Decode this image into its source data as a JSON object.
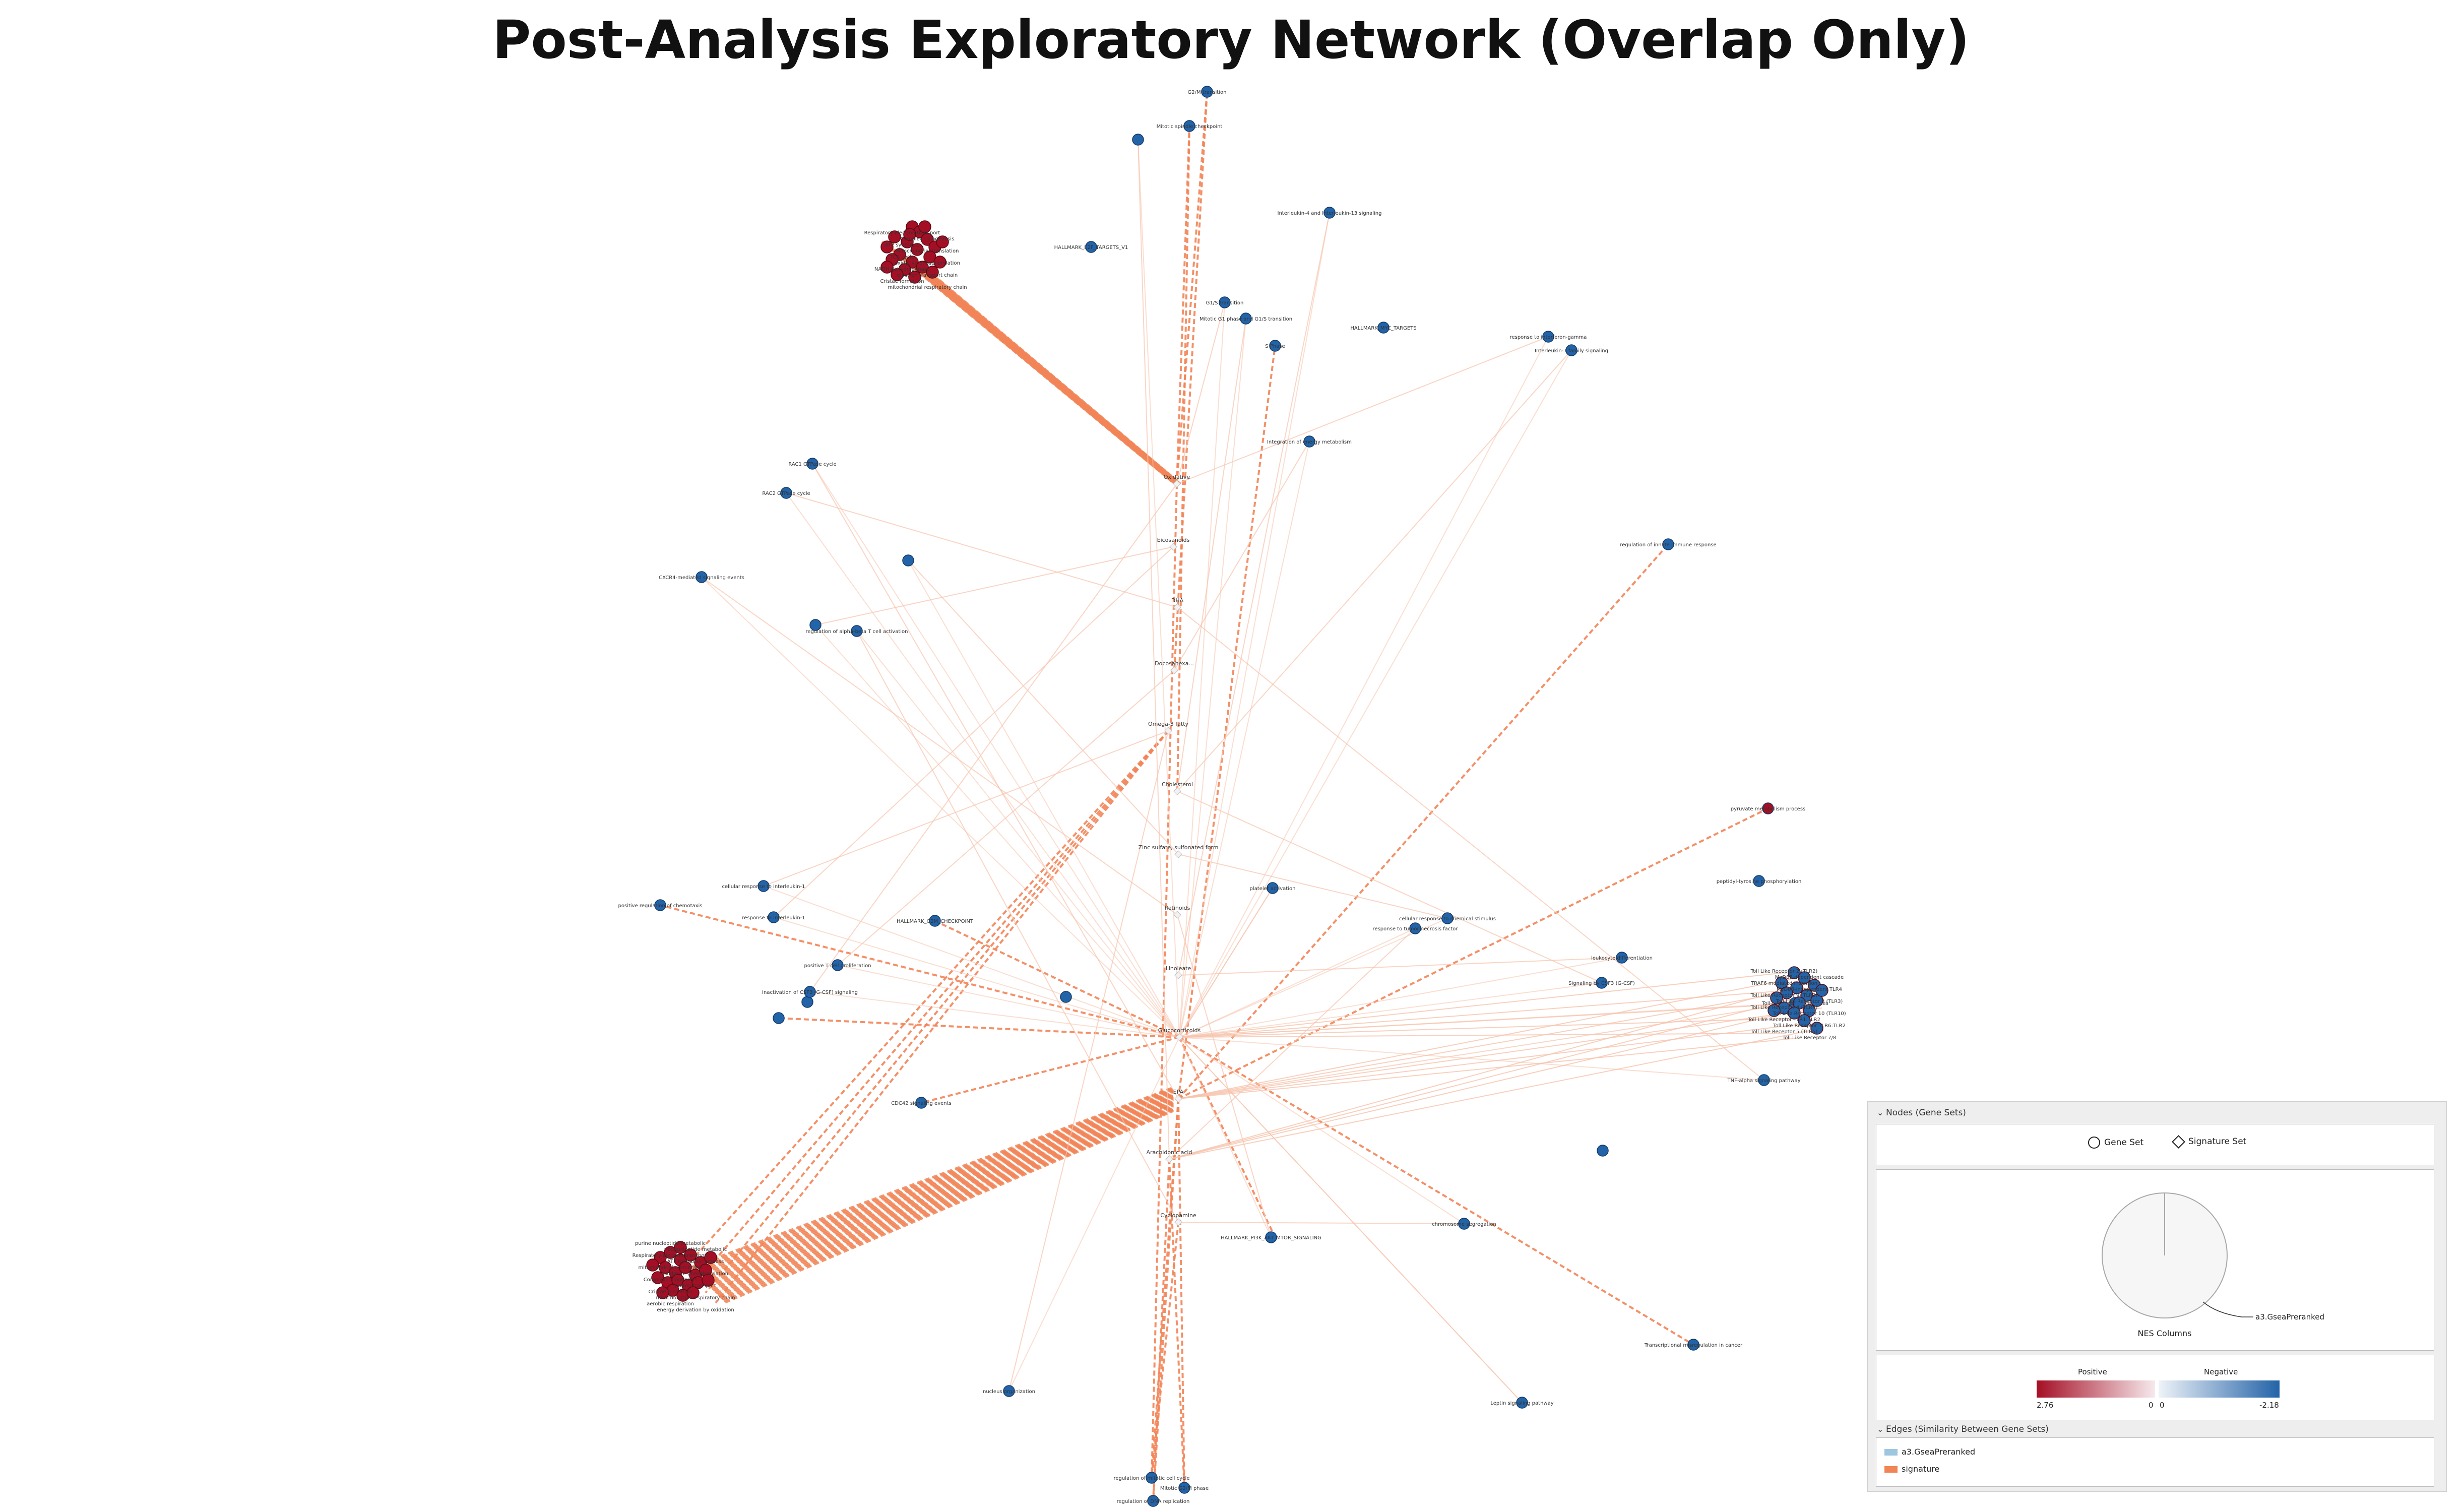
{
  "title": "Post-Analysis Exploratory Network (Overlap Only)",
  "colors": {
    "positive_node": "#a50f25",
    "negative_node": "#2363a8",
    "signature_edge": "#f28558",
    "signature_edge_light": "#f7c4ad",
    "geneset_edge": "#9ec7df"
  },
  "signature_nodes": [
    {
      "id": "S1",
      "label": "Oxidative"
    },
    {
      "id": "S2",
      "label": "Eicosanoids"
    },
    {
      "id": "S3",
      "label": "DHA"
    },
    {
      "id": "S4",
      "label": "Docosahexa..."
    },
    {
      "id": "S5",
      "label": "Omega-3 fatty"
    },
    {
      "id": "S6",
      "label": "Cholesterol"
    },
    {
      "id": "S7",
      "label": "Zinc sulfate, sulfonated form"
    },
    {
      "id": "S8",
      "label": "Retinoids"
    },
    {
      "id": "S9",
      "label": "Linoleate"
    },
    {
      "id": "S10",
      "label": "Glucocorticoids"
    },
    {
      "id": "S11",
      "label": "EPA"
    },
    {
      "id": "S12",
      "label": "Arachidonic acid"
    },
    {
      "id": "S13",
      "label": "Cyclopamine"
    }
  ],
  "gene_sets": [
    {
      "id": "G1",
      "label": "G2/M transition",
      "nes": -1
    },
    {
      "id": "G2",
      "label": "Mitotic spindle checkpoint",
      "nes": -1
    },
    {
      "id": "G3",
      "label": "",
      "nes": -1
    },
    {
      "id": "G4",
      "label": "Interleukin-4 and Interleukin-13 signaling",
      "nes": -1
    },
    {
      "id": "G5",
      "label": "HALLMARK_E2F_TARGETS_V1",
      "nes": -1
    },
    {
      "id": "G6",
      "label": "G1/S transition",
      "nes": -1
    },
    {
      "id": "G7",
      "label": "Mitotic G1 phase and G1/S transition",
      "nes": -1
    },
    {
      "id": "G8",
      "label": "S Phase",
      "nes": -1
    },
    {
      "id": "G9",
      "label": "HALLMARK_MYC_TARGETS",
      "nes": -1
    },
    {
      "id": "G10",
      "label": "Integration of energy metabolism",
      "nes": -1
    },
    {
      "id": "G11",
      "label": "response to interferon-gamma",
      "nes": -1
    },
    {
      "id": "G12",
      "label": "Interleukin-1 family signaling",
      "nes": -1
    },
    {
      "id": "G13",
      "label": "RAC1 GTPase cycle",
      "nes": -1
    },
    {
      "id": "G14",
      "label": "RAC2 GTPase cycle",
      "nes": -1
    },
    {
      "id": "G15",
      "label": "regulation of innate immune response",
      "nes": -1
    },
    {
      "id": "G16",
      "label": "",
      "nes": -1
    },
    {
      "id": "G17",
      "label": "CXCR4-mediated signaling events",
      "nes": -1
    },
    {
      "id": "G18",
      "label": "",
      "nes": -1
    },
    {
      "id": "G19",
      "label": "regulation of alpha-beta T cell activation",
      "nes": -1
    },
    {
      "id": "G20",
      "label": "pyruvate metabolism process",
      "nes": 1
    },
    {
      "id": "G21",
      "label": "peptidyl-tyrosine phosphorylation",
      "nes": -1
    },
    {
      "id": "G22",
      "label": "cellular response to interleukin-1",
      "nes": -1
    },
    {
      "id": "G23",
      "label": "platelet activation",
      "nes": -1
    },
    {
      "id": "G24",
      "label": "positive regulation of chemotaxis",
      "nes": -1
    },
    {
      "id": "G25",
      "label": "HALLMARK_G2M_CHECKPOINT",
      "nes": -1
    },
    {
      "id": "G26",
      "label": "response to interleukin-1",
      "nes": -1
    },
    {
      "id": "G27",
      "label": "cellular response to chemical stimulus",
      "nes": -1
    },
    {
      "id": "G28",
      "label": "response to tumor necrosis factor",
      "nes": -1
    },
    {
      "id": "G29",
      "label": "positive T cell proliferation",
      "nes": -1
    },
    {
      "id": "G30",
      "label": "leukocyte differentiation",
      "nes": -1
    },
    {
      "id": "G31",
      "label": "",
      "nes": -1
    },
    {
      "id": "G32",
      "label": "Inactivation of CSF3 (G-CSF) signaling",
      "nes": -1
    },
    {
      "id": "G33",
      "label": "Signaling by CSF3 (G-CSF)",
      "nes": -1
    },
    {
      "id": "G34",
      "label": "Toll-like receptor cascades",
      "nes": -1
    },
    {
      "id": "G35",
      "label": "",
      "nes": -1
    },
    {
      "id": "G36",
      "label": "",
      "nes": -1
    },
    {
      "id": "G37",
      "label": "TNF-alpha signaling pathway",
      "nes": -1
    },
    {
      "id": "G38",
      "label": "CDC42 signaling events",
      "nes": -1
    },
    {
      "id": "G39",
      "label": "",
      "nes": -1
    },
    {
      "id": "G40",
      "label": "HALLMARK_PI3K_AKT_MTOR_SIGNALING",
      "nes": -1
    },
    {
      "id": "G41",
      "label": "",
      "nes": -1
    },
    {
      "id": "G42",
      "label": "chromosome segregation",
      "nes": -1
    },
    {
      "id": "G43",
      "label": "Transcriptional misregulation in cancer",
      "nes": -1
    },
    {
      "id": "G44",
      "label": "nucleus organization",
      "nes": -1
    },
    {
      "id": "G45",
      "label": "Leptin signaling pathway",
      "nes": -1
    },
    {
      "id": "G46",
      "label": "regulation of mitotic cell cycle",
      "nes": -1
    },
    {
      "id": "G47",
      "label": "Mitotic G2/M phase",
      "nes": -1
    },
    {
      "id": "G48",
      "label": "regulation of DNA replication",
      "nes": -1
    }
  ],
  "top_cluster_labels": [
    "Respiratory electron transport",
    "Complex I biogenesis",
    "ATP synthesis",
    "Mitochondrial translation",
    "TCA cycle",
    "oxidative phosphorylation",
    "NADH dehydrogenase",
    "electron transport chain",
    "Cristae formation",
    "mitochondrial respiratory chain"
  ],
  "bottom_cluster_labels": [
    "purine nucleotide metabolic",
    "ribonucleotide metabolic",
    "Respiratory electron transport",
    "ATP metabolic process",
    "mitochondrial membrane",
    "oxidative phosphorylation",
    "Complex I biogenesis",
    "proton transport",
    "Cristae formation",
    "mitochondrial respiratory chain",
    "aerobic respiration",
    "energy derivation by oxidation"
  ],
  "right_cluster_labels": [
    "Toll Like Receptor 2 (TLR2)",
    "MyD88 dependent cascade",
    "TRAF6 mediated induction",
    "MyD88-independent TLR4",
    "Toll Like Receptor 9 (TLR9)",
    "Toll Like Receptor 3 (TLR3)",
    "Toll Like Receptor 4 (TLR4)",
    "Toll Like Receptor 10 (TLR10)",
    "Toll Like Receptor TLR1:TLR2",
    "Toll Like Receptor TLR6:TLR2",
    "Toll Like Receptor 5 (TLR5)",
    "Toll Like Receptor 7/8"
  ],
  "legend": {
    "nodes_header": "Nodes (Gene Sets)",
    "gene_set_label": "Gene Set",
    "signature_set_label": "Signature Set",
    "pie_label": "a3.GseaPreranked",
    "nes_columns_label": "NES Columns",
    "positive_label": "Positive",
    "negative_label": "Negative",
    "pos_max": "2.76",
    "pos_min": "0",
    "neg_min": "0",
    "neg_max": "-2.18",
    "edges_header": "Edges (Similarity Between Gene Sets)",
    "edge_items": [
      {
        "label": "a3.GseaPreranked",
        "color": "#9ec7df"
      },
      {
        "label": "signature",
        "color": "#f28558"
      }
    ]
  }
}
